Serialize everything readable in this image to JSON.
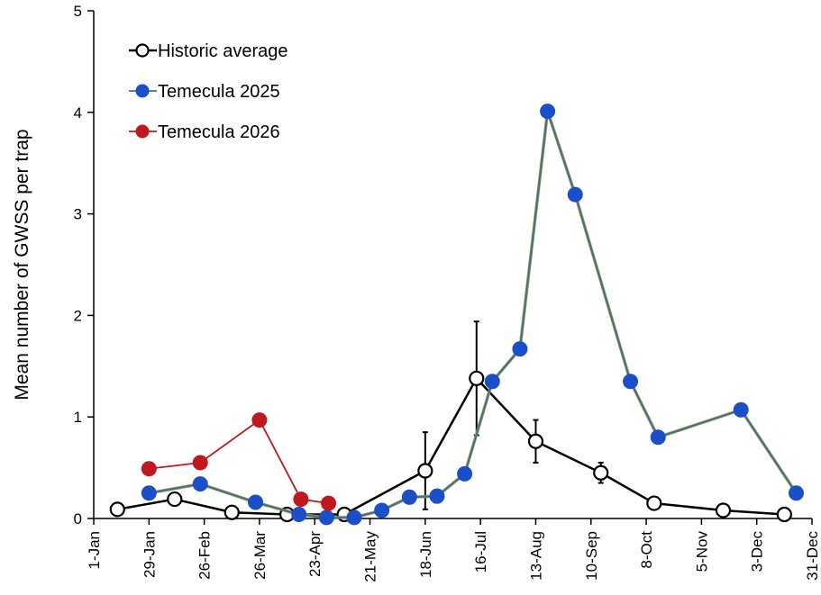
{
  "chart_data": {
    "type": "line",
    "ylabel": "Mean number of GWSS per trap",
    "xlabel": "",
    "ylim": [
      0,
      5
    ],
    "yticks": [
      0,
      1,
      2,
      3,
      4,
      5
    ],
    "xlim": [
      "2025-01-01",
      "2025-12-31"
    ],
    "xticks": [
      {
        "date": "2025-01-01",
        "label": "1-Jan"
      },
      {
        "date": "2025-01-29",
        "label": "29-Jan"
      },
      {
        "date": "2025-02-26",
        "label": "26-Feb"
      },
      {
        "date": "2025-03-26",
        "label": "26-Mar"
      },
      {
        "date": "2025-04-23",
        "label": "23-Apr"
      },
      {
        "date": "2025-05-21",
        "label": "21-May"
      },
      {
        "date": "2025-06-18",
        "label": "18-Jun"
      },
      {
        "date": "2025-07-16",
        "label": "16-Jul"
      },
      {
        "date": "2025-08-13",
        "label": "13-Aug"
      },
      {
        "date": "2025-09-10",
        "label": "10-Sep"
      },
      {
        "date": "2025-10-08",
        "label": "8-Oct"
      },
      {
        "date": "2025-11-05",
        "label": "5-Nov"
      },
      {
        "date": "2025-12-03",
        "label": "3-Dec"
      },
      {
        "date": "2025-12-31",
        "label": "31-Dec"
      }
    ],
    "legend_position": "top-left",
    "grid": false,
    "series": [
      {
        "name": "Historic average",
        "line_color": "#000000",
        "marker_fill": "#ffffff",
        "marker_stroke": "#000000",
        "points": [
          {
            "date": "2025-01-13",
            "y": 0.09
          },
          {
            "date": "2025-02-11",
            "y": 0.19,
            "err": 0.06
          },
          {
            "date": "2025-03-12",
            "y": 0.06
          },
          {
            "date": "2025-04-09",
            "y": 0.04
          },
          {
            "date": "2025-05-08",
            "y": 0.04
          },
          {
            "date": "2025-06-18",
            "y": 0.47,
            "err": 0.38
          },
          {
            "date": "2025-07-14",
            "y": 1.38,
            "err": 0.56
          },
          {
            "date": "2025-08-13",
            "y": 0.76,
            "err": 0.21
          },
          {
            "date": "2025-09-15",
            "y": 0.45,
            "err": 0.1
          },
          {
            "date": "2025-10-12",
            "y": 0.15
          },
          {
            "date": "2025-11-16",
            "y": 0.08
          },
          {
            "date": "2025-12-17",
            "y": 0.04
          }
        ]
      },
      {
        "name": "Temecula 2025",
        "line_color": "#3b6e9e",
        "marker_fill": "#1a4fc7",
        "marker_stroke": "#1a4fc7",
        "points": [
          {
            "date": "2025-01-29",
            "y": 0.25
          },
          {
            "date": "2025-02-24",
            "y": 0.34
          },
          {
            "date": "2025-03-24",
            "y": 0.16
          },
          {
            "date": "2025-04-15",
            "y": 0.04
          },
          {
            "date": "2025-04-29",
            "y": 0.01
          },
          {
            "date": "2025-05-13",
            "y": 0.01
          },
          {
            "date": "2025-05-27",
            "y": 0.08
          },
          {
            "date": "2025-06-10",
            "y": 0.21
          },
          {
            "date": "2025-06-24",
            "y": 0.22
          },
          {
            "date": "2025-07-08",
            "y": 0.44
          },
          {
            "date": "2025-07-22",
            "y": 1.35
          },
          {
            "date": "2025-08-05",
            "y": 1.67
          },
          {
            "date": "2025-08-19",
            "y": 4.01
          },
          {
            "date": "2025-09-02",
            "y": 3.19
          },
          {
            "date": "2025-09-30",
            "y": 1.35
          },
          {
            "date": "2025-10-14",
            "y": 0.8
          },
          {
            "date": "2025-11-25",
            "y": 1.07
          },
          {
            "date": "2025-12-23",
            "y": 0.25
          }
        ]
      },
      {
        "name": "Temecula 2026",
        "line_color": "#c0181f",
        "marker_fill": "#c0181f",
        "marker_stroke": "#c0181f",
        "points": [
          {
            "date": "2025-01-29",
            "y": 0.49
          },
          {
            "date": "2025-02-24",
            "y": 0.55
          },
          {
            "date": "2025-03-26",
            "y": 0.97
          },
          {
            "date": "2025-04-16",
            "y": 0.19
          },
          {
            "date": "2025-04-30",
            "y": 0.15
          }
        ]
      }
    ]
  }
}
